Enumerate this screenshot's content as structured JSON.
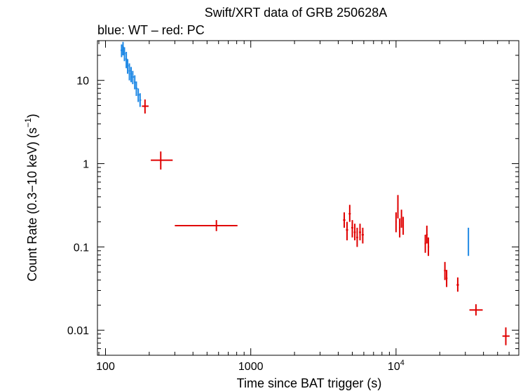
{
  "chart_data": {
    "type": "scatter",
    "title": "Swift/XRT data of GRB 250628A",
    "subtitle": "blue: WT – red: PC",
    "xlabel": "Time since BAT trigger (s)",
    "ylabel": "Count Rate (0.3−10 keV) (s",
    "ylabel_exp": "−1",
    "ylabel_close": ")",
    "x_scale": "log",
    "y_scale": "log",
    "xlim": [
      88,
      70000
    ],
    "ylim": [
      0.005,
      30
    ],
    "x_ticks": [
      {
        "value": 100,
        "label": "100"
      },
      {
        "value": 1000,
        "label": "1000"
      },
      {
        "value": 10000,
        "label": "10",
        "exp": "4"
      }
    ],
    "y_ticks": [
      {
        "value": 0.01,
        "label": "0.01"
      },
      {
        "value": 0.1,
        "label": "0.1"
      },
      {
        "value": 1,
        "label": "1"
      },
      {
        "value": 10,
        "label": "10"
      }
    ],
    "colors": {
      "WT": "#1e88e5",
      "PC": "#e00000"
    },
    "series": [
      {
        "mode": "WT",
        "points": [
          {
            "x": 129,
            "y": 23,
            "xlo": 127,
            "xhi": 131,
            "ylo": 19,
            "yhi": 27
          },
          {
            "x": 132,
            "y": 25,
            "xlo": 131,
            "xhi": 134,
            "ylo": 20,
            "yhi": 29
          },
          {
            "x": 135,
            "y": 21,
            "xlo": 134,
            "xhi": 137,
            "ylo": 17,
            "yhi": 25
          },
          {
            "x": 139,
            "y": 18,
            "xlo": 137,
            "xhi": 141,
            "ylo": 14,
            "yhi": 22
          },
          {
            "x": 142,
            "y": 15,
            "xlo": 141,
            "xhi": 144,
            "ylo": 12,
            "yhi": 18
          },
          {
            "x": 146,
            "y": 13,
            "xlo": 144,
            "xhi": 148,
            "ylo": 10,
            "yhi": 16
          },
          {
            "x": 150,
            "y": 12,
            "xlo": 148,
            "xhi": 152,
            "ylo": 9.5,
            "yhi": 14.5
          },
          {
            "x": 154,
            "y": 11,
            "xlo": 152,
            "xhi": 157,
            "ylo": 9,
            "yhi": 13
          },
          {
            "x": 159,
            "y": 9.5,
            "xlo": 157,
            "xhi": 161,
            "ylo": 7.8,
            "yhi": 11.5
          },
          {
            "x": 163,
            "y": 8,
            "xlo": 161,
            "xhi": 166,
            "ylo": 6.5,
            "yhi": 9.7
          },
          {
            "x": 168,
            "y": 6.7,
            "xlo": 166,
            "xhi": 171,
            "ylo": 5.5,
            "yhi": 8
          },
          {
            "x": 173,
            "y": 5.8,
            "xlo": 171,
            "xhi": 176,
            "ylo": 4.8,
            "yhi": 7
          },
          {
            "x": 31500,
            "y": 0.12,
            "xlo": 31300,
            "xhi": 31700,
            "ylo": 0.078,
            "yhi": 0.17
          }
        ]
      },
      {
        "mode": "PC",
        "points": [
          {
            "x": 187,
            "y": 4.9,
            "xlo": 178,
            "xhi": 198,
            "ylo": 4.0,
            "yhi": 5.9
          },
          {
            "x": 240,
            "y": 1.1,
            "xlo": 205,
            "xhi": 290,
            "ylo": 0.85,
            "yhi": 1.4
          },
          {
            "x": 580,
            "y": 0.18,
            "xlo": 300,
            "xhi": 810,
            "ylo": 0.155,
            "yhi": 0.21
          },
          {
            "x": 4400,
            "y": 0.21,
            "xlo": 4320,
            "xhi": 4480,
            "ylo": 0.17,
            "yhi": 0.26
          },
          {
            "x": 4600,
            "y": 0.16,
            "xlo": 4520,
            "xhi": 4680,
            "ylo": 0.12,
            "yhi": 0.2
          },
          {
            "x": 4800,
            "y": 0.25,
            "xlo": 4720,
            "xhi": 4880,
            "ylo": 0.2,
            "yhi": 0.32
          },
          {
            "x": 5000,
            "y": 0.17,
            "xlo": 4920,
            "xhi": 5080,
            "ylo": 0.13,
            "yhi": 0.21
          },
          {
            "x": 5200,
            "y": 0.15,
            "xlo": 5120,
            "xhi": 5280,
            "ylo": 0.12,
            "yhi": 0.19
          },
          {
            "x": 5400,
            "y": 0.13,
            "xlo": 5320,
            "xhi": 5480,
            "ylo": 0.1,
            "yhi": 0.17
          },
          {
            "x": 5650,
            "y": 0.15,
            "xlo": 5560,
            "xhi": 5740,
            "ylo": 0.12,
            "yhi": 0.19
          },
          {
            "x": 5900,
            "y": 0.14,
            "xlo": 5800,
            "xhi": 6000,
            "ylo": 0.11,
            "yhi": 0.17
          },
          {
            "x": 10000,
            "y": 0.2,
            "xlo": 9900,
            "xhi": 10100,
            "ylo": 0.15,
            "yhi": 0.26
          },
          {
            "x": 10300,
            "y": 0.29,
            "xlo": 10200,
            "xhi": 10400,
            "ylo": 0.22,
            "yhi": 0.42
          },
          {
            "x": 10600,
            "y": 0.17,
            "xlo": 10500,
            "xhi": 10700,
            "ylo": 0.13,
            "yhi": 0.22
          },
          {
            "x": 10900,
            "y": 0.22,
            "xlo": 10800,
            "xhi": 11000,
            "ylo": 0.17,
            "yhi": 0.28
          },
          {
            "x": 11200,
            "y": 0.18,
            "xlo": 11100,
            "xhi": 11300,
            "ylo": 0.14,
            "yhi": 0.23
          },
          {
            "x": 15900,
            "y": 0.11,
            "xlo": 15700,
            "xhi": 16100,
            "ylo": 0.085,
            "yhi": 0.14
          },
          {
            "x": 16300,
            "y": 0.14,
            "xlo": 16100,
            "xhi": 16500,
            "ylo": 0.11,
            "yhi": 0.18
          },
          {
            "x": 16700,
            "y": 0.1,
            "xlo": 16500,
            "xhi": 16900,
            "ylo": 0.078,
            "yhi": 0.13
          },
          {
            "x": 21700,
            "y": 0.052,
            "xlo": 21400,
            "xhi": 22000,
            "ylo": 0.04,
            "yhi": 0.066
          },
          {
            "x": 22300,
            "y": 0.042,
            "xlo": 22000,
            "xhi": 22600,
            "ylo": 0.033,
            "yhi": 0.053
          },
          {
            "x": 26600,
            "y": 0.035,
            "xlo": 26100,
            "xhi": 27100,
            "ylo": 0.029,
            "yhi": 0.043
          },
          {
            "x": 35500,
            "y": 0.0175,
            "xlo": 32000,
            "xhi": 39500,
            "ylo": 0.015,
            "yhi": 0.0205
          },
          {
            "x": 57000,
            "y": 0.0085,
            "xlo": 54000,
            "xhi": 60500,
            "ylo": 0.0066,
            "yhi": 0.0108
          }
        ]
      }
    ]
  }
}
